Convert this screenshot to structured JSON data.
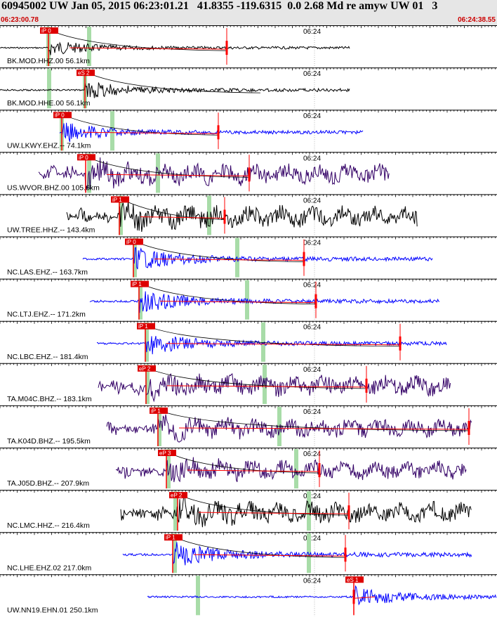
{
  "header": {
    "title": "60945002 UW Jan 05, 2015 06:23:01.21   41.8355 -119.6315  0.0 2.68 Md re amyw UW 01   3",
    "start_time": "06:23:00.78",
    "end_time": "06:24:38.55"
  },
  "minute_label": "06:24",
  "colors": {
    "black": "#000000",
    "blue": "#0000ff",
    "purple": "#330066",
    "pick": "#ff0000",
    "pick_box": "#dd0000",
    "window": "#a8dca8",
    "tick": "#000000"
  },
  "traces": [
    {
      "label": "BK.MOD.HHZ.00 56.1km",
      "pick": "iP 0",
      "color": "black"
    },
    {
      "label": "BK.MOD.HHE.00 56.1km",
      "pick": "eS 2",
      "color": "black"
    },
    {
      "label": "UW.LKWY.EHZ.-- 74.1km",
      "pick": "iP 0",
      "color": "blue"
    },
    {
      "label": "US.WVOR.BHZ.00 105.6km",
      "pick": "iP 0",
      "color": "purple"
    },
    {
      "label": "UW.TREE.HHZ.-- 143.4km",
      "pick": "iP 1",
      "color": "black"
    },
    {
      "label": "NC.LAS.EHZ.-- 163.7km",
      "pick": "iP 0",
      "color": "blue"
    },
    {
      "label": "NC.LTJ.EHZ.-- 171.2km",
      "pick": "iP 1",
      "color": "blue"
    },
    {
      "label": "NC.LBC.EHZ.-- 181.4km",
      "pick": "iP 1",
      "color": "blue"
    },
    {
      "label": "TA.M04C.BHZ.-- 183.1km",
      "pick": "eP 2",
      "color": "purple"
    },
    {
      "label": "TA.K04D.BHZ.-- 195.5km",
      "pick": "iP 1",
      "color": "purple"
    },
    {
      "label": "TA.J05D.BHZ.-- 207.9km",
      "pick": "eP 3",
      "color": "purple"
    },
    {
      "label": "NC.LMC.HHZ.-- 216.4km",
      "pick": "eP 2",
      "color": "black"
    },
    {
      "label": "NC.LHE.EHZ.02 217.0km",
      "pick": "iP 1",
      "color": "blue"
    },
    {
      "label": "UW.NN19.EHN.01 250.1km",
      "pick": "eS 1",
      "color": "blue"
    }
  ]
}
